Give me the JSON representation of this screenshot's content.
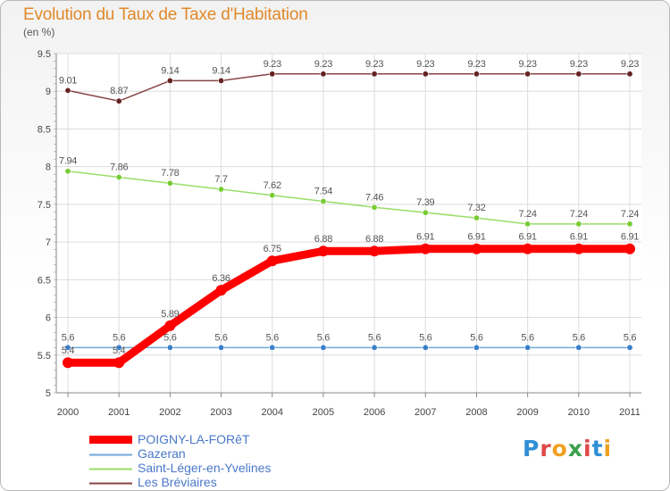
{
  "chart_data": {
    "type": "line",
    "title": "Evolution du Taux de Taxe d'Habitation",
    "subtitle": "(en %)",
    "xlabel": "",
    "ylabel": "",
    "x": [
      "2000",
      "2001",
      "2002",
      "2003",
      "2004",
      "2005",
      "2006",
      "2007",
      "2008",
      "2009",
      "2010",
      "2011"
    ],
    "ylim": [
      5,
      9.5
    ],
    "yticks": [
      "5",
      "5.5",
      "6",
      "6.5",
      "7",
      "7.5",
      "8",
      "8.5",
      "9",
      "9.5"
    ],
    "grid": true,
    "legend_position": "bottom-left",
    "series": [
      {
        "name": "POIGNY-LA-FORêT",
        "color": "#ff0000",
        "width": 9,
        "values": [
          5.4,
          5.4,
          5.89,
          6.36,
          6.75,
          6.88,
          6.88,
          6.91,
          6.91,
          6.91,
          6.91,
          6.91
        ],
        "labels": [
          "5.4",
          "5.4",
          "5.89",
          "6.36",
          "6.75",
          "6.88",
          "6.88",
          "6.91",
          "6.91",
          "6.91",
          "6.91",
          "6.91"
        ]
      },
      {
        "name": "Gazeran",
        "color": "#6fa8d8",
        "marker": "#3a7fc8",
        "width": 1.5,
        "values": [
          5.6,
          5.6,
          5.6,
          5.6,
          5.6,
          5.6,
          5.6,
          5.6,
          5.6,
          5.6,
          5.6,
          5.6
        ],
        "labels": [
          "5.6",
          "5.6",
          "5.6",
          "5.6",
          "5.6",
          "5.6",
          "5.6",
          "5.6",
          "5.6",
          "5.6",
          "5.6",
          "5.6"
        ]
      },
      {
        "name": "Saint-Léger-en-Yvelines",
        "color": "#99dd66",
        "marker": "#77cc33",
        "width": 1.5,
        "values": [
          7.94,
          7.86,
          7.78,
          7.7,
          7.62,
          7.54,
          7.46,
          7.39,
          7.32,
          7.24,
          7.24,
          7.24
        ],
        "labels": [
          "7.94",
          "7.86",
          "7.78",
          "7.7",
          "7.62",
          "7.54",
          "7.46",
          "7.39",
          "7.32",
          "7.24",
          "7.24",
          "7.24"
        ]
      },
      {
        "name": "Les Bréviaires",
        "color": "#884444",
        "marker": "#662222",
        "width": 1.5,
        "values": [
          9.01,
          8.87,
          9.14,
          9.14,
          9.23,
          9.23,
          9.23,
          9.23,
          9.23,
          9.23,
          9.23,
          9.23
        ],
        "labels": [
          "9.01",
          "8.87",
          "9.14",
          "9.14",
          "9.23",
          "9.23",
          "9.23",
          "9.23",
          "9.23",
          "9.23",
          "9.23",
          "9.23"
        ]
      }
    ]
  },
  "brand": {
    "letters": [
      "P",
      "r",
      "o",
      "x",
      "i",
      "t",
      "i"
    ]
  }
}
